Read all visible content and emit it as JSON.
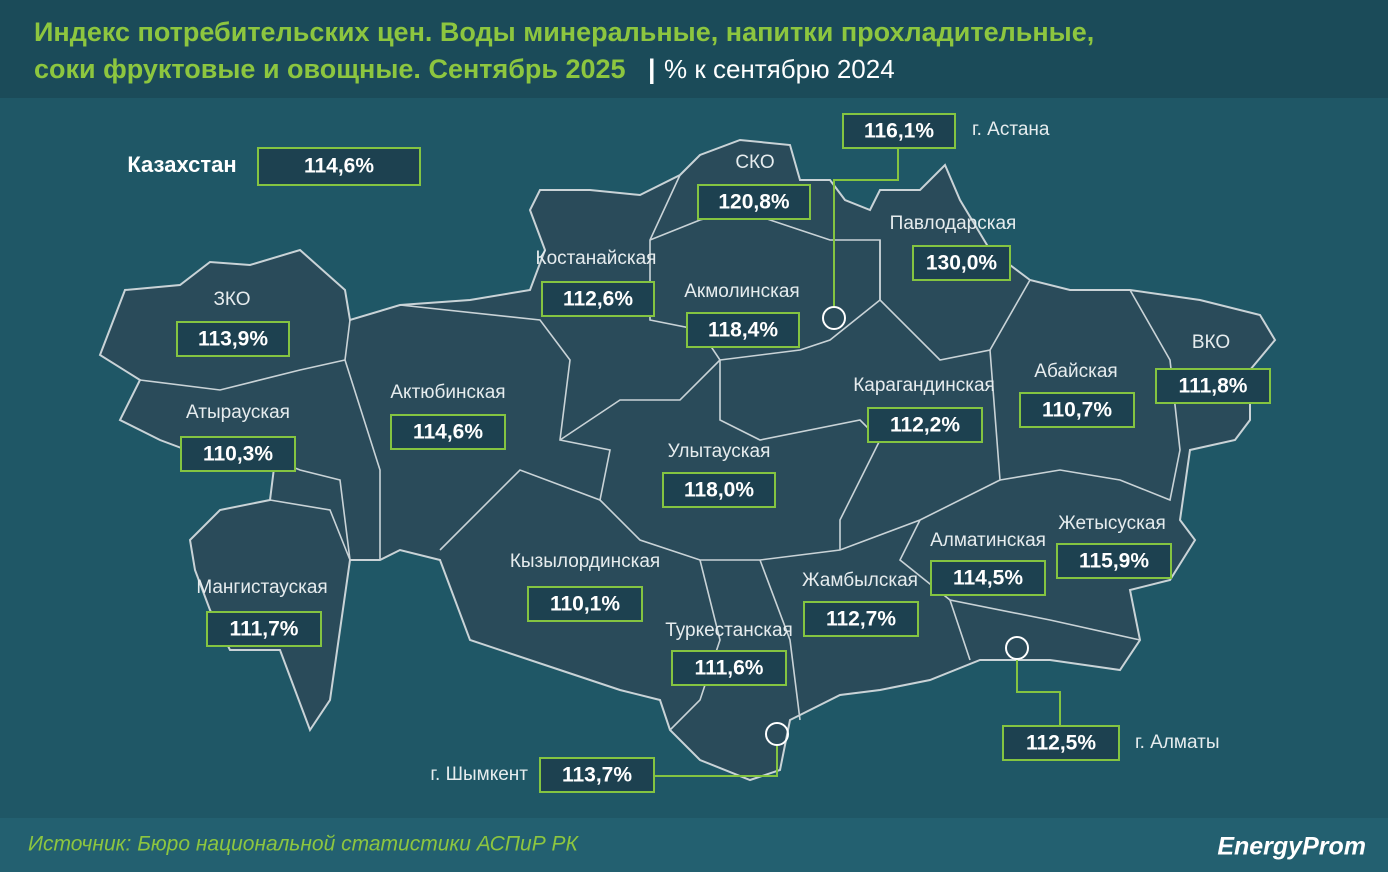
{
  "header": {
    "title_lines": [
      "Индекс потребительских цен. Воды минеральные, напитки прохладительные,",
      "соки фруктовые и овощные. Сентябрь 2025"
    ],
    "separator": "|",
    "subtitle": "% к сентябрю 2024"
  },
  "country": {
    "name": "Казахстан",
    "value": "114,6%"
  },
  "regions": [
    {
      "name": "ЗКО",
      "value": "113,9%"
    },
    {
      "name": "Атырауская",
      "value": "110,3%"
    },
    {
      "name": "Актюбинская",
      "value": "114,6%"
    },
    {
      "name": "Мангистауская",
      "value": "111,7%"
    },
    {
      "name": "Костанайская",
      "value": "112,6%"
    },
    {
      "name": "СКО",
      "value": "120,8%"
    },
    {
      "name": "Акмолинская",
      "value": "118,4%"
    },
    {
      "name": "Павлодарская",
      "value": "130,0%"
    },
    {
      "name": "Карагандинская",
      "value": "112,2%"
    },
    {
      "name": "Абайская",
      "value": "110,7%"
    },
    {
      "name": "ВКО",
      "value": "111,8%"
    },
    {
      "name": "Улытауская",
      "value": "118,0%"
    },
    {
      "name": "Кызылординская",
      "value": "110,1%"
    },
    {
      "name": "Жамбылская",
      "value": "112,7%"
    },
    {
      "name": "Алматинская",
      "value": "114,5%"
    },
    {
      "name": "Жетысуская",
      "value": "115,9%"
    },
    {
      "name": "Туркестанская",
      "value": "111,6%"
    }
  ],
  "cities": [
    {
      "name": "г. Астана",
      "value": "116,1%"
    },
    {
      "name": "г. Шымкент",
      "value": "113,7%"
    },
    {
      "name": "г. Алматы",
      "value": "112,5%"
    }
  ],
  "footer": {
    "source": "Источник: Бюро национальной статистики АСПиР РК",
    "logo": "EnergyProm"
  }
}
